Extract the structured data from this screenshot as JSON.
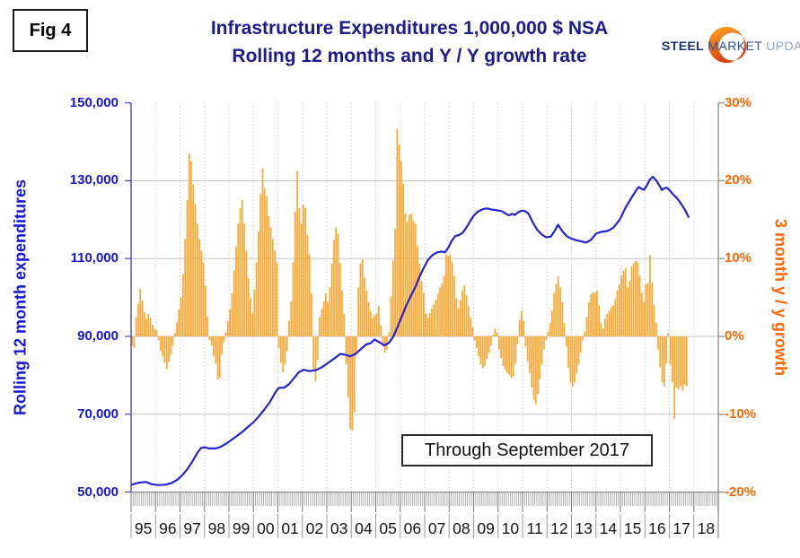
{
  "figure": {
    "label": "Fig 4"
  },
  "title": {
    "line1": "Infrastructure Expenditures 1,000,000 $ NSA",
    "line2": "Rolling 12 months and Y / Y growth rate",
    "color": "#1b1b8a"
  },
  "logo": {
    "word1": "STEEL",
    "word2": "MARKET",
    "word3": "UPDATE"
  },
  "annotation": {
    "text": "Through September 2017"
  },
  "chart_data": {
    "type": "combo-bar-line",
    "title": "Infrastructure Expenditures 1,000,000 $ NSA — Rolling 12 months and Y / Y growth rate",
    "grid": "horizontal solid every 20,000 / 10%, vertical dotted at each year",
    "left_axis": {
      "title": "Rolling 12 month expenditures",
      "color": "#1414d6",
      "min": 50000,
      "max": 150000,
      "ticks": [
        {
          "value": 150000,
          "label": "150,000"
        },
        {
          "value": 130000,
          "label": "130,000"
        },
        {
          "value": 110000,
          "label": "110,000"
        },
        {
          "value": 90000,
          "label": "90,000"
        },
        {
          "value": 70000,
          "label": "70,000"
        },
        {
          "value": 50000,
          "label": "50,000"
        }
      ]
    },
    "right_axis": {
      "title": "3 month y / y growth",
      "color": "#ff6600",
      "min": -20,
      "max": 30,
      "ticks": [
        {
          "value": 30,
          "label": "30%"
        },
        {
          "value": 20,
          "label": "20%"
        },
        {
          "value": 10,
          "label": "10%"
        },
        {
          "value": 0,
          "label": "0%"
        },
        {
          "value": -10,
          "label": "-10%"
        },
        {
          "value": -20,
          "label": "-20%"
        }
      ]
    },
    "x_axis": {
      "start_year": 1995,
      "end_year": 2019,
      "years": [
        "95",
        "96",
        "97",
        "98",
        "99",
        "00",
        "01",
        "02",
        "03",
        "04",
        "05",
        "06",
        "07",
        "08",
        "09",
        "10",
        "11",
        "12",
        "13",
        "14",
        "15",
        "16",
        "17",
        "18"
      ]
    },
    "bars": {
      "name": "3 month y/y growth (%), monthly from Jan 1995 through Sep 2017",
      "color": "#fca42c",
      "monthly_values_pct": [
        -1.2,
        -1.5,
        2.5,
        4.2,
        6.1,
        4.6,
        3.1,
        2.3,
        2.9,
        2.4,
        1.5,
        1.0,
        0.8,
        -0.5,
        -1.8,
        -2.6,
        -3.4,
        -4.2,
        -3.3,
        -2.4,
        -1.2,
        0.5,
        1.8,
        3.5,
        5.0,
        8.0,
        12.5,
        17.5,
        23.5,
        22.5,
        19.5,
        17.0,
        14.5,
        12.5,
        11.0,
        9.5,
        6.5,
        2.5,
        -0.5,
        -1.2,
        -2.5,
        -3.5,
        -5.5,
        -5.3,
        -2.3,
        -0.8,
        0.5,
        2.0,
        3.5,
        5.5,
        8.5,
        11.5,
        14.5,
        16.5,
        17.5,
        14.5,
        11.0,
        7.5,
        5.0,
        3.0,
        6.0,
        9.5,
        13.5,
        18.3,
        21.6,
        19.0,
        18.0,
        15.5,
        14.0,
        12.5,
        11.0,
        9.5,
        -1.5,
        -3.4,
        -4.6,
        -3.6,
        -1.9,
        2.0,
        4.5,
        9.5,
        16.0,
        21.2,
        16.5,
        14.5,
        16.9,
        16.5,
        13.0,
        10.5,
        5.5,
        -4.4,
        -5.8,
        -3.0,
        2.5,
        3.5,
        4.5,
        5.5,
        4.4,
        6.3,
        9.4,
        12.4,
        14.0,
        13.2,
        9.4,
        5.9,
        2.9,
        -3.6,
        -7.8,
        -11.9,
        -12.1,
        -9.7,
        -2.4,
        6.3,
        9.4,
        9.9,
        7.5,
        5.9,
        4.4,
        3.3,
        2.3,
        2.7,
        3.0,
        3.9,
        1.4,
        -1.3,
        -2.1,
        -1.7,
        0.5,
        5.1,
        9.7,
        13.8,
        26.7,
        24.6,
        22.5,
        19.6,
        15.8,
        14.7,
        15.6,
        15.8,
        14.9,
        14.5,
        11.6,
        9.4,
        7.1,
        5.6,
        3.0,
        2.4,
        3.0,
        3.6,
        4.1,
        4.7,
        5.5,
        6.3,
        6.8,
        7.8,
        10.5,
        10.3,
        10.5,
        9.5,
        7.8,
        4.9,
        3.6,
        4.7,
        5.9,
        6.6,
        5.3,
        3.9,
        2.4,
        1.2,
        -0.5,
        -1.5,
        -2.6,
        -3.6,
        -4.1,
        -3.8,
        -2.9,
        -2.1,
        -1.2,
        0.2,
        1.0,
        0.5,
        -1.7,
        -2.8,
        -3.8,
        -4.3,
        -4.7,
        -5.0,
        -5.3,
        -5.1,
        -3.5,
        -1.0,
        2.1,
        3.3,
        2.0,
        -1.3,
        -3.2,
        -4.7,
        -6.6,
        -8.1,
        -8.7,
        -7.4,
        -5.5,
        -3.6,
        -1.7,
        -0.5,
        0.6,
        1.7,
        3.3,
        5.6,
        6.7,
        7.7,
        6.3,
        4.4,
        1.7,
        -1.3,
        -4.0,
        -5.9,
        -6.5,
        -5.9,
        -4.7,
        -3.6,
        -2.1,
        -0.5,
        0.6,
        2.5,
        4.4,
        5.4,
        5.7,
        5.6,
        5.9,
        4.0,
        1.7,
        1.0,
        2.3,
        2.9,
        3.3,
        3.7,
        4.0,
        4.8,
        5.9,
        6.7,
        7.8,
        8.4,
        8.8,
        6.3,
        7.1,
        9.0,
        9.4,
        9.7,
        9.5,
        7.8,
        5.6,
        4.4,
        6.7,
        6.8,
        10.4,
        6.9,
        4.0,
        1.7,
        -1.7,
        -4.0,
        -5.9,
        -6.4,
        -3.5,
        0.4,
        -3.6,
        -5.9,
        -10.6,
        -6.6,
        -6.8,
        -6.4,
        -7.0,
        -6.2,
        -6.4
      ]
    },
    "line": {
      "name": "Rolling 12 month expenditures (1,000,000 $)",
      "color": "#2424cf",
      "points": [
        [
          1995.02,
          51900
        ],
        [
          1995.3,
          52400
        ],
        [
          1995.6,
          52600
        ],
        [
          1995.85,
          52000
        ],
        [
          1996.1,
          51800
        ],
        [
          1996.4,
          51900
        ],
        [
          1996.65,
          52300
        ],
        [
          1996.9,
          53200
        ],
        [
          1997.1,
          54400
        ],
        [
          1997.3,
          55900
        ],
        [
          1997.5,
          57800
        ],
        [
          1997.7,
          60000
        ],
        [
          1997.85,
          61300
        ],
        [
          1998.0,
          61500
        ],
        [
          1998.2,
          61200
        ],
        [
          1998.45,
          61200
        ],
        [
          1998.65,
          61600
        ],
        [
          1998.9,
          62500
        ],
        [
          1999.1,
          63400
        ],
        [
          1999.3,
          64300
        ],
        [
          1999.55,
          65500
        ],
        [
          1999.75,
          66600
        ],
        [
          2000.0,
          67900
        ],
        [
          2000.2,
          69300
        ],
        [
          2000.45,
          71200
        ],
        [
          2000.7,
          73400
        ],
        [
          2000.9,
          75700
        ],
        [
          2001.05,
          76800
        ],
        [
          2001.25,
          76800
        ],
        [
          2001.45,
          77700
        ],
        [
          2001.65,
          79200
        ],
        [
          2001.85,
          80800
        ],
        [
          2002.05,
          81400
        ],
        [
          2002.3,
          81100
        ],
        [
          2002.55,
          81300
        ],
        [
          2002.8,
          82100
        ],
        [
          2003.05,
          83200
        ],
        [
          2003.3,
          84300
        ],
        [
          2003.55,
          85500
        ],
        [
          2003.75,
          85300
        ],
        [
          2003.95,
          84900
        ],
        [
          2004.15,
          85400
        ],
        [
          2004.35,
          86500
        ],
        [
          2004.6,
          87900
        ],
        [
          2004.8,
          88300
        ],
        [
          2004.95,
          89200
        ],
        [
          2005.15,
          88500
        ],
        [
          2005.35,
          87700
        ],
        [
          2005.55,
          88400
        ],
        [
          2005.72,
          90000
        ],
        [
          2005.88,
          92300
        ],
        [
          2006.05,
          94900
        ],
        [
          2006.25,
          98000
        ],
        [
          2006.45,
          100600
        ],
        [
          2006.62,
          102700
        ],
        [
          2006.78,
          105200
        ],
        [
          2006.95,
          107500
        ],
        [
          2007.12,
          109500
        ],
        [
          2007.3,
          110800
        ],
        [
          2007.5,
          111600
        ],
        [
          2007.7,
          111800
        ],
        [
          2007.83,
          111600
        ],
        [
          2007.96,
          112800
        ],
        [
          2008.1,
          114500
        ],
        [
          2008.25,
          115800
        ],
        [
          2008.42,
          116100
        ],
        [
          2008.56,
          116700
        ],
        [
          2008.7,
          117900
        ],
        [
          2008.85,
          119500
        ],
        [
          2009.0,
          121000
        ],
        [
          2009.18,
          122100
        ],
        [
          2009.38,
          122700
        ],
        [
          2009.55,
          122900
        ],
        [
          2009.75,
          122600
        ],
        [
          2009.95,
          122400
        ],
        [
          2010.15,
          122200
        ],
        [
          2010.32,
          121500
        ],
        [
          2010.45,
          121100
        ],
        [
          2010.57,
          121500
        ],
        [
          2010.68,
          121200
        ],
        [
          2010.82,
          121900
        ],
        [
          2010.95,
          122300
        ],
        [
          2011.1,
          122200
        ],
        [
          2011.25,
          121500
        ],
        [
          2011.42,
          119300
        ],
        [
          2011.6,
          117400
        ],
        [
          2011.8,
          116100
        ],
        [
          2011.97,
          115500
        ],
        [
          2012.15,
          115600
        ],
        [
          2012.3,
          117000
        ],
        [
          2012.45,
          118700
        ],
        [
          2012.64,
          116900
        ],
        [
          2012.82,
          115700
        ],
        [
          2013.0,
          115100
        ],
        [
          2013.2,
          114700
        ],
        [
          2013.4,
          114400
        ],
        [
          2013.6,
          114100
        ],
        [
          2013.8,
          114800
        ],
        [
          2014.0,
          116400
        ],
        [
          2014.18,
          116800
        ],
        [
          2014.38,
          117000
        ],
        [
          2014.55,
          117300
        ],
        [
          2014.72,
          118000
        ],
        [
          2014.87,
          119200
        ],
        [
          2015.0,
          120300
        ],
        [
          2015.2,
          123000
        ],
        [
          2015.45,
          125600
        ],
        [
          2015.63,
          127400
        ],
        [
          2015.75,
          128400
        ],
        [
          2015.87,
          127900
        ],
        [
          2015.97,
          127700
        ],
        [
          2016.08,
          128800
        ],
        [
          2016.2,
          130300
        ],
        [
          2016.33,
          131000
        ],
        [
          2016.47,
          130000
        ],
        [
          2016.6,
          128700
        ],
        [
          2016.7,
          127600
        ],
        [
          2016.8,
          128100
        ],
        [
          2016.9,
          128200
        ],
        [
          2017.02,
          127500
        ],
        [
          2017.15,
          126500
        ],
        [
          2017.28,
          125700
        ],
        [
          2017.4,
          124800
        ],
        [
          2017.53,
          123600
        ],
        [
          2017.65,
          122400
        ],
        [
          2017.78,
          120700
        ]
      ]
    }
  }
}
